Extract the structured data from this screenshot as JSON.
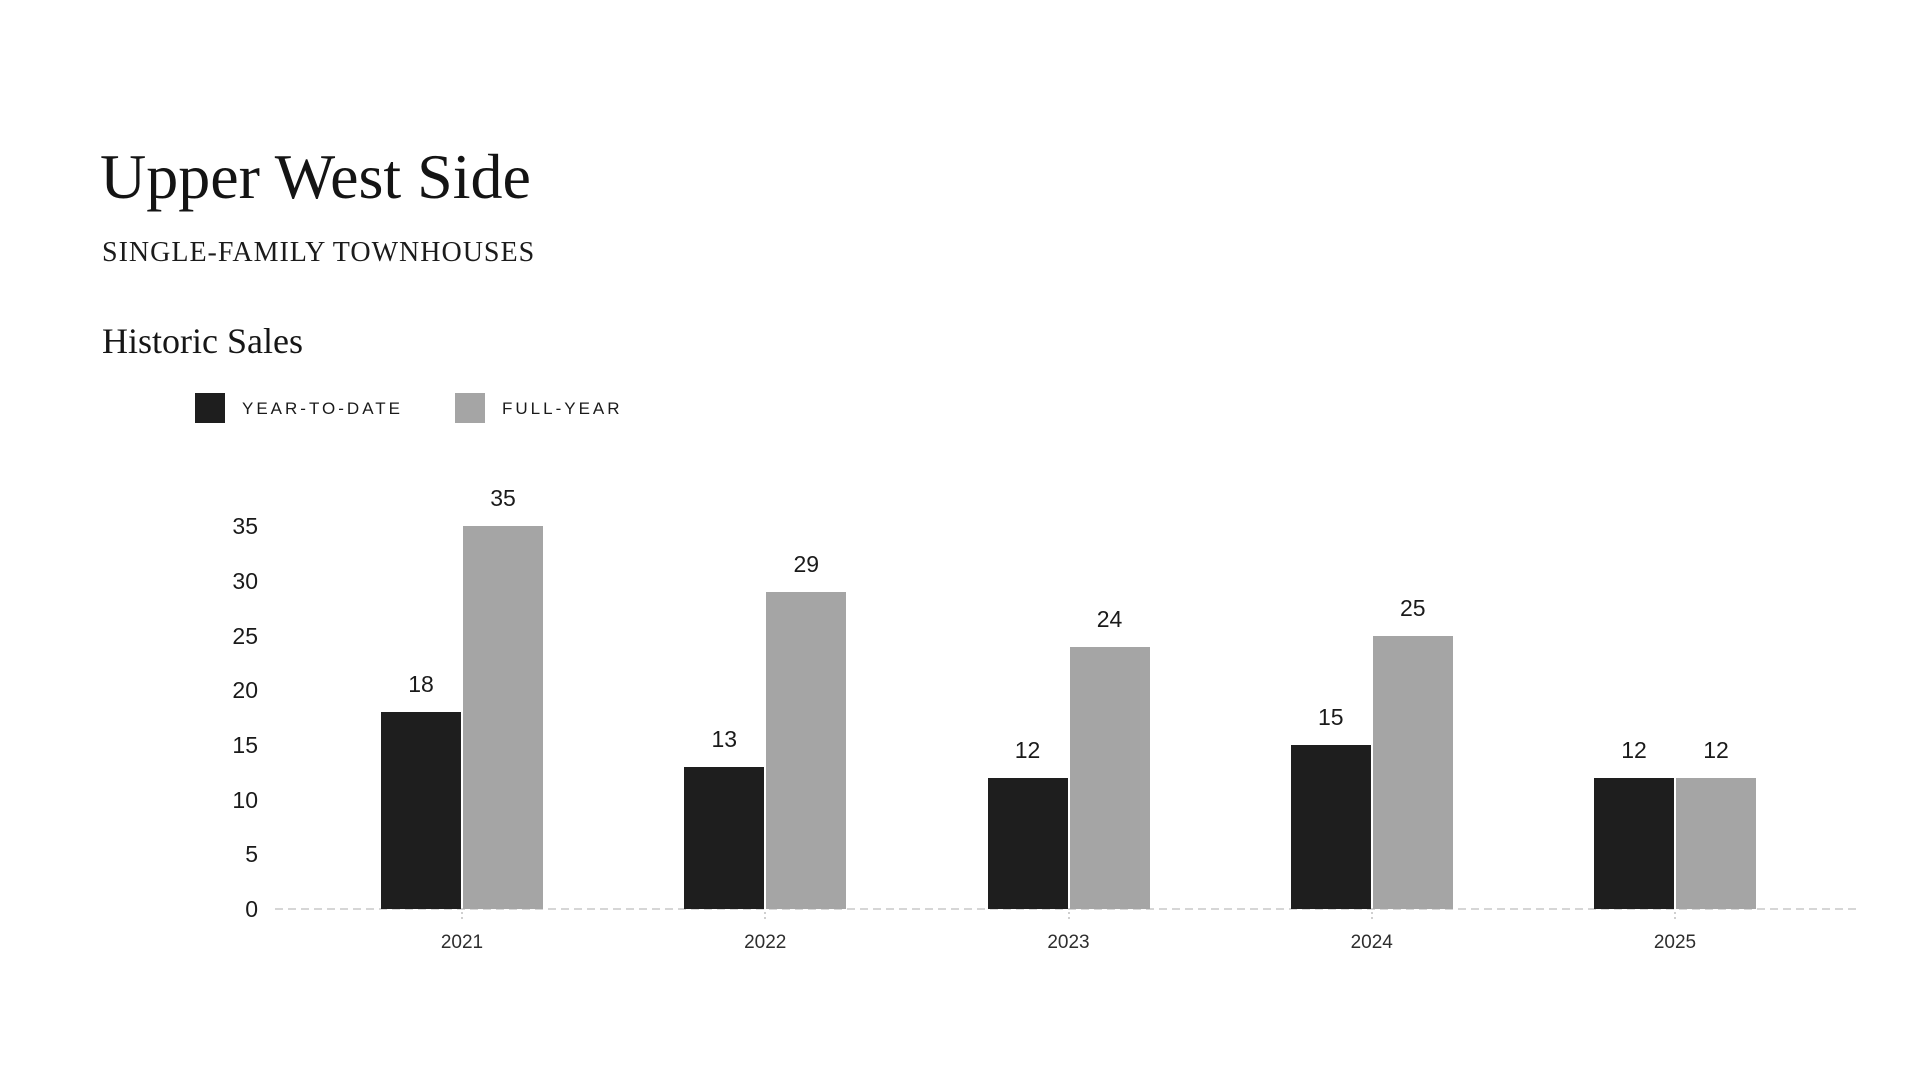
{
  "header": {
    "title": "Upper West Side",
    "subtitle": "SINGLE-FAMILY TOWNHOUSES",
    "section_title": "Historic Sales"
  },
  "legend": {
    "items": [
      {
        "label": "YEAR-TO-DATE",
        "color": "#1e1e1e"
      },
      {
        "label": "FULL-YEAR",
        "color": "#a5a5a5"
      }
    ]
  },
  "chart_data": {
    "type": "bar",
    "title": "Historic Sales",
    "categories": [
      "2021",
      "2022",
      "2023",
      "2024",
      "2025"
    ],
    "series": [
      {
        "name": "YEAR-TO-DATE",
        "color": "#1e1e1e",
        "values": [
          18,
          13,
          12,
          15,
          12
        ]
      },
      {
        "name": "FULL-YEAR",
        "color": "#a5a5a5",
        "values": [
          35,
          29,
          24,
          25,
          12
        ]
      }
    ],
    "yticks": [
      0,
      5,
      10,
      15,
      20,
      25,
      30,
      35
    ],
    "ylim": [
      0,
      35
    ],
    "xlabel": "",
    "ylabel": "",
    "grid": false,
    "value_labels": true,
    "legend_position": "top-left",
    "baseline_style": "dotted",
    "baseline_color": "#d6d6d6",
    "text_color": "#1a1a1a",
    "background_color": "#ffffff"
  }
}
